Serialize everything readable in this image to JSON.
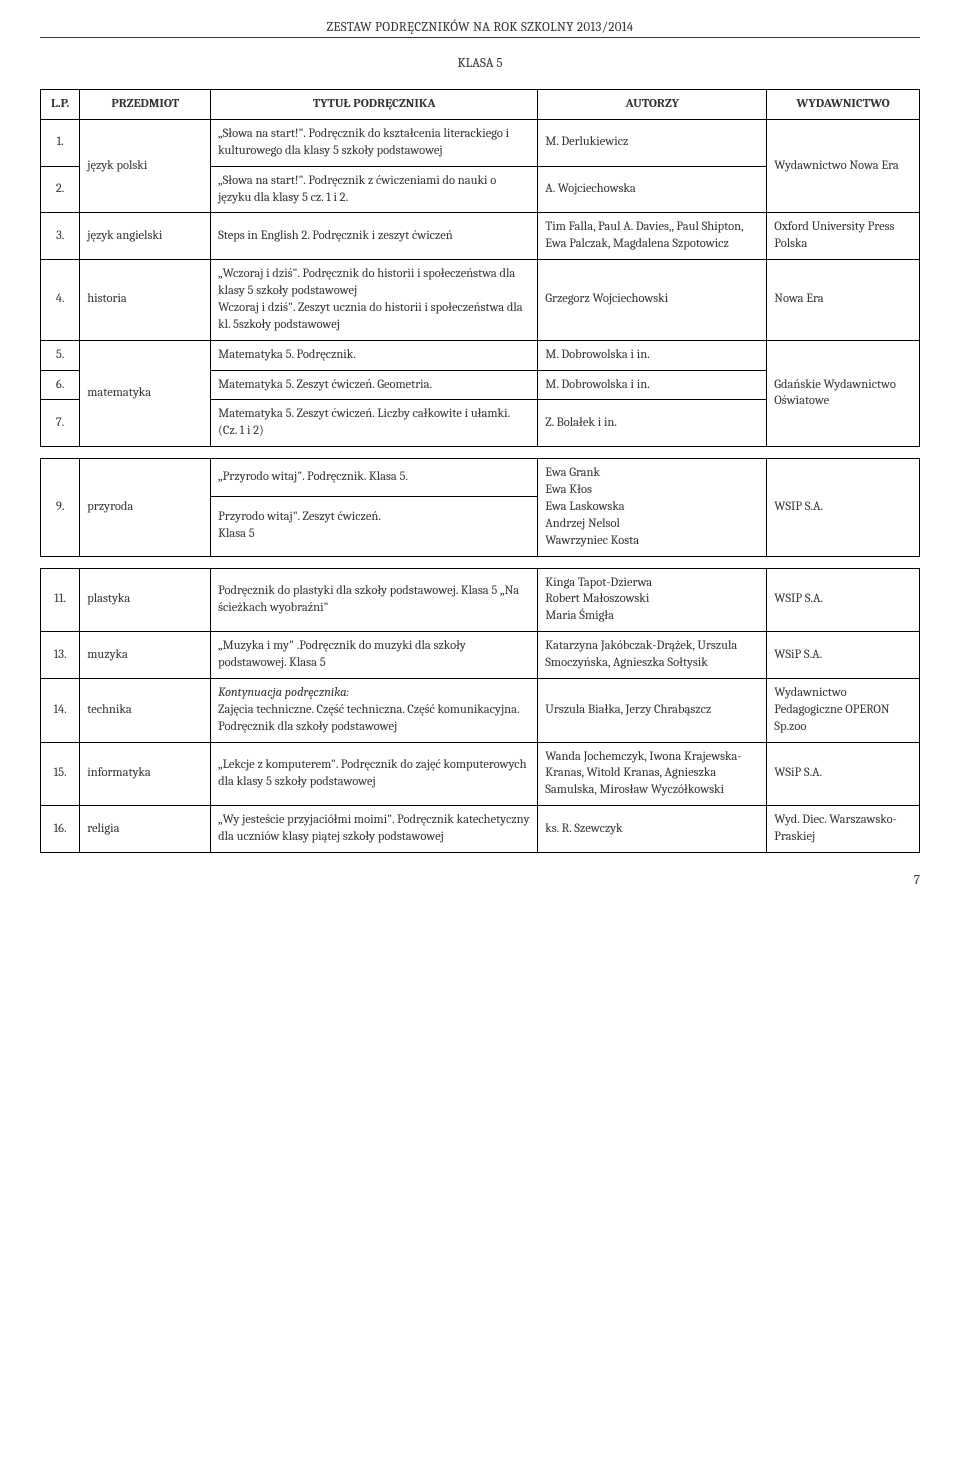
{
  "header": "ZESTAW PODRĘCZNIKÓW NA ROK SZKOLNY 2013/2014",
  "klasa": "KLASA 5",
  "columns": {
    "lp": "L.P.",
    "subject": "PRZEDMIOT",
    "title": "TYTUŁ PODRĘCZNIKA",
    "authors": "AUTORZY",
    "publisher": "WYDAWNICTWO"
  },
  "rows": {
    "r1": {
      "lp": "1.",
      "subject": "język polski",
      "title": "„Słowa na start!\". Podręcznik do kształcenia literackiego i kulturowego dla klasy 5 szkoły podstawowej",
      "authors": "M. Derlukiewicz",
      "publisher": "Wydawnictwo Nowa Era"
    },
    "r2": {
      "lp": "2.",
      "title": "„Słowa na start!\". Podręcznik z ćwiczeniami do nauki o języku dla klasy 5 cz. 1 i 2.",
      "authors": "A. Wojciechowska"
    },
    "r3": {
      "lp": "3.",
      "subject": "język angielski",
      "title": "Steps in English 2. Podręcznik i zeszyt ćwiczeń",
      "authors": "Tim Falla, Paul A. Davies,, Paul Shipton, Ewa Palczak, Magdalena Szpotowicz",
      "publisher": "Oxford University Press Polska"
    },
    "r4": {
      "lp": "4.",
      "subject": "historia",
      "title": "„Wczoraj i dziś\". Podręcznik do historii i społeczeństwa dla klasy 5 szkoły podstawowej\nWczoraj i dziś\". Zeszyt ucznia do historii i społeczeństwa dla kl. 5szkoły podstawowej",
      "authors": "Grzegorz Wojciechowski",
      "publisher": "Nowa Era"
    },
    "r5": {
      "lp": "5.",
      "subject": "matematyka",
      "title": "Matematyka 5. Podręcznik.",
      "authors": "M. Dobrowolska i in.",
      "publisher": "Gdańskie Wydawnictwo Oświatowe"
    },
    "r6": {
      "lp": "6.",
      "title": "Matematyka 5. Zeszyt ćwiczeń. Geometria.",
      "authors": "M. Dobrowolska i in."
    },
    "r7": {
      "lp": "7.",
      "title": "Matematyka 5. Zeszyt ćwiczeń. Liczby całkowite i ułamki. (Cz. 1 i 2)",
      "authors": "Z. Bolałek i in."
    },
    "r9a": {
      "lp": "9.",
      "subject": "przyroda",
      "title": "„Przyrodo witaj\". Podręcznik. Klasa 5.",
      "authors": "Ewa Grank\nEwa Kłos\nEwa Laskowska\nAndrzej Nelsol\nWawrzyniec Kosta",
      "publisher": "WSIP S.A."
    },
    "r9b": {
      "title": "Przyrodo witaj\". Zeszyt ćwiczeń.\nKlasa 5"
    },
    "r11": {
      "lp": "11.",
      "subject": "plastyka",
      "title": "Podręcznik do plastyki dla szkoły podstawowej. Klasa 5 „Na ścieżkach wyobraźni\"",
      "authors": "Kinga Tapot-Dzierwa\nRobert Małoszowski\nMaria Śmigła",
      "publisher": "WSIP S.A."
    },
    "r13": {
      "lp": "13.",
      "subject": "muzyka",
      "title": "„Muzyka i my\" .Podręcznik do muzyki dla szkoły podstawowej. Klasa 5",
      "authors": "Katarzyna Jakóbczak-Drążek, Urszula Smoczyńska, Agnieszka Sołtysik",
      "publisher": "WSiP S.A."
    },
    "r14": {
      "lp": "14.",
      "subject": "technika",
      "title_prefix": "Kontynuacja podręcznika:",
      "title": "Zajęcia techniczne. Część techniczna. Część komunikacyjna. Podręcznik dla szkoły podstawowej",
      "authors": "Urszula Białka, Jerzy Chrabąszcz",
      "publisher": "Wydawnictwo Pedagogiczne OPERON Sp.zoo"
    },
    "r15": {
      "lp": "15.",
      "subject": "informatyka",
      "title": "„Lekcje z komputerem\". Podręcznik do zajęć komputerowych dla klasy 5 szkoły podstawowej",
      "authors": "Wanda Jochemczyk, Iwona Krajewska-Kranas, Witold Kranas, Agnieszka Samulska, Mirosław Wyczółkowski",
      "publisher": "WSiP S.A."
    },
    "r16": {
      "lp": "16.",
      "subject": "religia",
      "title": "„Wy jesteście przyjaciółmi moimi\". Podręcznik katechetyczny dla uczniów klasy piątej szkoły podstawowej",
      "authors": "ks. R. Szewczyk",
      "publisher": "Wyd. Diec. Warszawsko-Praskiej"
    }
  },
  "page_number": "7"
}
